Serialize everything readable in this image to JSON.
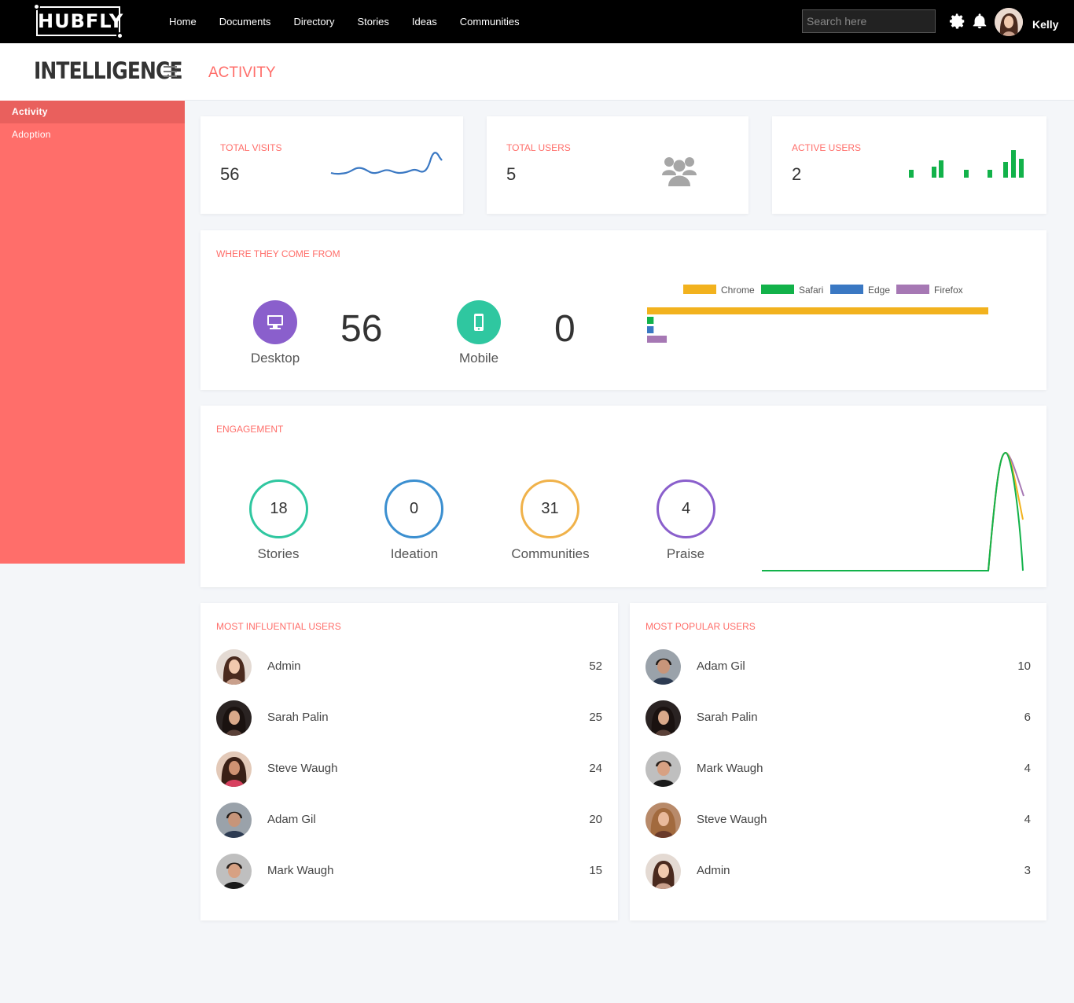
{
  "header": {
    "logo": "HUBFLY",
    "nav": [
      "Home",
      "Documents",
      "Directory",
      "Stories",
      "Ideas",
      "Communities"
    ],
    "search_placeholder": "Search here",
    "username": "Kelly"
  },
  "sidebar": {
    "title": "INTELLIGENCE",
    "items": [
      {
        "label": "Activity",
        "active": true
      },
      {
        "label": "Adoption",
        "active": false
      }
    ]
  },
  "page": {
    "title": "ACTIVITY"
  },
  "stats": {
    "total_visits": {
      "label": "TOTAL VISITS",
      "value": "56"
    },
    "total_users": {
      "label": "TOTAL USERS",
      "value": "5"
    },
    "active_users": {
      "label": "ACTIVE USERS",
      "value": "2"
    }
  },
  "sources": {
    "label": "WHERE THEY COME FROM",
    "desktop": {
      "label": "Desktop",
      "value": "56"
    },
    "mobile": {
      "label": "Mobile",
      "value": "0"
    }
  },
  "engagement": {
    "label": "ENGAGEMENT",
    "items": [
      {
        "label": "Stories",
        "value": "18",
        "color": "#2fc7a0"
      },
      {
        "label": "Ideation",
        "value": "0",
        "color": "#3b8fd0"
      },
      {
        "label": "Communities",
        "value": "31",
        "color": "#f0b24a"
      },
      {
        "label": "Praise",
        "value": "4",
        "color": "#8a5fcc"
      }
    ]
  },
  "chart_data": {
    "type": "bar",
    "orientation": "horizontal",
    "legend_placement": "top",
    "series": [
      {
        "name": "Chrome",
        "value": 52,
        "color": "#f2b21e"
      },
      {
        "name": "Safari",
        "value": 1,
        "color": "#12b24a"
      },
      {
        "name": "Edge",
        "value": 1,
        "color": "#3a78c3"
      },
      {
        "name": "Firefox",
        "value": 3,
        "color": "#a678b4"
      }
    ],
    "xlim": [
      0,
      60
    ]
  },
  "influential": {
    "label": "MOST INFLUENTIAL USERS",
    "users": [
      {
        "name": "Admin",
        "score": "52"
      },
      {
        "name": "Sarah Palin",
        "score": "25"
      },
      {
        "name": "Steve Waugh",
        "score": "24"
      },
      {
        "name": "Adam Gil",
        "score": "20"
      },
      {
        "name": "Mark Waugh",
        "score": "15"
      }
    ]
  },
  "popular": {
    "label": "MOST POPULAR USERS",
    "users": [
      {
        "name": "Adam Gil",
        "score": "10"
      },
      {
        "name": "Sarah Palin",
        "score": "6"
      },
      {
        "name": "Mark Waugh",
        "score": "4"
      },
      {
        "name": "Steve Waugh",
        "score": "4"
      },
      {
        "name": "Admin",
        "score": "3"
      }
    ]
  },
  "colors": {
    "accent": "#ff6e6a",
    "sidebar": "#ff6e6a",
    "green": "#12b24a"
  }
}
